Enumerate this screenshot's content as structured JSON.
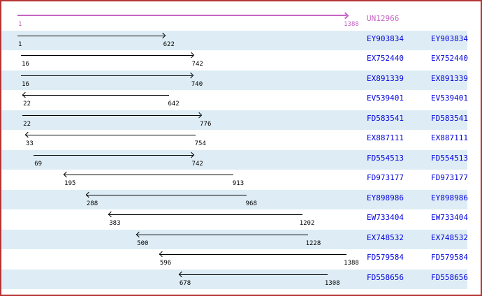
{
  "viewer": {
    "colors": {
      "border": "#b63333",
      "band": "#deedf5",
      "ruler": "#c465c4",
      "arrow": "#000000",
      "accession": "#0000e0"
    },
    "ruler": {
      "label": "UN12966",
      "start": 1,
      "end": 1388,
      "direction": "right"
    },
    "alignments": [
      {
        "id": "EY903834",
        "start": 1,
        "end": 622,
        "direction": "right"
      },
      {
        "id": "EX752440",
        "start": 16,
        "end": 742,
        "direction": "right"
      },
      {
        "id": "EX891339",
        "start": 16,
        "end": 740,
        "direction": "right"
      },
      {
        "id": "EV539401",
        "start": 22,
        "end": 642,
        "direction": "left"
      },
      {
        "id": "FD583541",
        "start": 22,
        "end": 776,
        "direction": "right"
      },
      {
        "id": "EX887111",
        "start": 33,
        "end": 754,
        "direction": "left"
      },
      {
        "id": "FD554513",
        "start": 69,
        "end": 742,
        "direction": "right"
      },
      {
        "id": "FD973177",
        "start": 195,
        "end": 913,
        "direction": "left"
      },
      {
        "id": "EY898986",
        "start": 288,
        "end": 968,
        "direction": "left"
      },
      {
        "id": "EW733404",
        "start": 383,
        "end": 1202,
        "direction": "left"
      },
      {
        "id": "EX748532",
        "start": 500,
        "end": 1228,
        "direction": "left"
      },
      {
        "id": "FD579584",
        "start": 596,
        "end": 1388,
        "direction": "left"
      },
      {
        "id": "FD558656",
        "start": 678,
        "end": 1308,
        "direction": "left"
      }
    ]
  }
}
